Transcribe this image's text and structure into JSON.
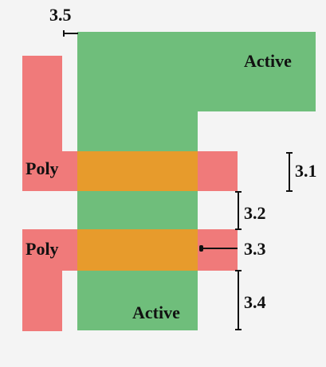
{
  "labels": {
    "active_top": "Active",
    "active_bottom": "Active",
    "poly_top": "Poly",
    "poly_bottom": "Poly"
  },
  "dimensions": {
    "d35": "3.5",
    "d31": "3.1",
    "d32": "3.2",
    "d33": "3.3",
    "d34": "3.4"
  },
  "colors": {
    "active": "#6fbe7b",
    "poly": "#f07a7a",
    "overlap": "#e79b2c"
  }
}
